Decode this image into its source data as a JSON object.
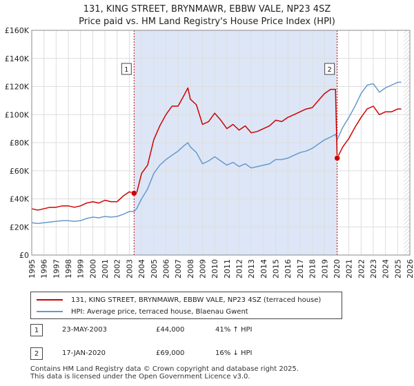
{
  "title_line1": "131, KING STREET, BRYNMAWR, EBBW VALE, NP23 4SZ",
  "title_line2": "Price paid vs. HM Land Registry's House Price Index (HPI)",
  "colors": {
    "property": "#cc0000",
    "hpi": "#6699cc",
    "shade": "#dde6f7",
    "grid": "#dddddd"
  },
  "legend": {
    "property_label": "131, KING STREET, BRYNMAWR, EBBW VALE, NP23 4SZ (terraced house)",
    "hpi_label": "HPI: Average price, terraced house, Blaenau Gwent"
  },
  "sales": [
    {
      "num": "1",
      "date": "23-MAY-2003",
      "price": "£44,000",
      "hpi": "41% ↑ HPI"
    },
    {
      "num": "2",
      "date": "17-JAN-2020",
      "price": "£69,000",
      "hpi": "16% ↓ HPI"
    }
  ],
  "footer_line1": "Contains HM Land Registry data © Crown copyright and database right 2025.",
  "footer_line2": "This data is licensed under the Open Government Licence v3.0.",
  "chart_data": {
    "type": "line",
    "xlim": [
      1995,
      2026
    ],
    "ylim": [
      0,
      160000
    ],
    "y_ticks": [
      {
        "value": 0,
        "label": "£0"
      },
      {
        "value": 20000,
        "label": "£20K"
      },
      {
        "value": 40000,
        "label": "£40K"
      },
      {
        "value": 60000,
        "label": "£60K"
      },
      {
        "value": 80000,
        "label": "£80K"
      },
      {
        "value": 100000,
        "label": "£100K"
      },
      {
        "value": 120000,
        "label": "£120K"
      },
      {
        "value": 140000,
        "label": "£140K"
      },
      {
        "value": 160000,
        "label": "£160K"
      }
    ],
    "x_ticks": [
      "1995",
      "1996",
      "1997",
      "1998",
      "1999",
      "2000",
      "2001",
      "2002",
      "2003",
      "2004",
      "2005",
      "2006",
      "2007",
      "2008",
      "2009",
      "2010",
      "2011",
      "2012",
      "2013",
      "2014",
      "2015",
      "2016",
      "2017",
      "2018",
      "2019",
      "2020",
      "2021",
      "2022",
      "2023",
      "2024",
      "2025",
      "2026"
    ],
    "shaded_range": [
      2003.39,
      2020.04
    ],
    "hatched_from": 2025.5,
    "sale_markers": [
      {
        "label": "1",
        "x": 2003.39,
        "y": 44000
      },
      {
        "label": "2",
        "x": 2020.04,
        "y": 69000
      }
    ],
    "series": [
      {
        "name": "131, KING STREET, BRYNMAWR, EBBW VALE, NP23 4SZ (terraced house)",
        "x": [
          1995,
          1995.5,
          1996,
          1996.5,
          1997,
          1997.5,
          1998,
          1998.5,
          1999,
          1999.5,
          2000,
          2000.5,
          2001,
          2001.5,
          2002,
          2002.5,
          2003,
          2003.39,
          2003.6,
          2004,
          2004.5,
          2005,
          2005.5,
          2006,
          2006.5,
          2007,
          2007.5,
          2007.8,
          2008,
          2008.5,
          2009,
          2009.5,
          2010,
          2010.5,
          2011,
          2011.5,
          2012,
          2012.5,
          2013,
          2013.5,
          2014,
          2014.5,
          2015,
          2015.5,
          2016,
          2016.5,
          2017,
          2017.5,
          2018,
          2018.5,
          2019,
          2019.5,
          2019.9,
          2020.04,
          2020.5,
          2021,
          2021.5,
          2022,
          2022.5,
          2023,
          2023.5,
          2024,
          2024.5,
          2025,
          2025.3
        ],
        "values": [
          33000,
          32000,
          33000,
          34000,
          34000,
          35000,
          35000,
          34000,
          35000,
          37000,
          38000,
          37000,
          39000,
          38000,
          38000,
          42000,
          45000,
          44000,
          44000,
          58000,
          64000,
          82000,
          92000,
          100000,
          106000,
          106000,
          114000,
          119000,
          111000,
          107000,
          93000,
          95000,
          101000,
          96000,
          90000,
          93000,
          89000,
          92000,
          87000,
          88000,
          90000,
          92000,
          96000,
          95000,
          98000,
          100000,
          102000,
          104000,
          105000,
          110000,
          115000,
          118000,
          118000,
          69000,
          77000,
          83000,
          91000,
          98000,
          104000,
          106000,
          100000,
          102000,
          102000,
          104000,
          104000
        ]
      },
      {
        "name": "HPI: Average price, terraced house, Blaenau Gwent",
        "x": [
          1995,
          1995.5,
          1996,
          1996.5,
          1997,
          1997.5,
          1998,
          1998.5,
          1999,
          1999.5,
          2000,
          2000.5,
          2001,
          2001.5,
          2002,
          2002.5,
          2003,
          2003.39,
          2003.6,
          2004,
          2004.5,
          2005,
          2005.5,
          2006,
          2006.5,
          2007,
          2007.5,
          2007.8,
          2008,
          2008.5,
          2009,
          2009.5,
          2010,
          2010.5,
          2011,
          2011.5,
          2012,
          2012.5,
          2013,
          2013.5,
          2014,
          2014.5,
          2015,
          2015.5,
          2016,
          2016.5,
          2017,
          2017.5,
          2018,
          2018.5,
          2019,
          2019.5,
          2019.9,
          2020.04,
          2020.5,
          2021,
          2021.5,
          2022,
          2022.5,
          2023,
          2023.5,
          2024,
          2024.5,
          2025,
          2025.3
        ],
        "values": [
          23000,
          22500,
          23000,
          23500,
          24000,
          24500,
          24500,
          24000,
          24500,
          26000,
          27000,
          26500,
          27500,
          27000,
          27500,
          29000,
          31000,
          31000,
          33000,
          40000,
          47000,
          58000,
          64000,
          68000,
          71000,
          74000,
          78000,
          80000,
          77000,
          73000,
          65000,
          67000,
          70000,
          67000,
          64000,
          66000,
          63000,
          65000,
          62000,
          63000,
          64000,
          65000,
          68000,
          68000,
          69000,
          71000,
          73000,
          74000,
          76000,
          79000,
          82000,
          84000,
          86000,
          82000,
          91000,
          98000,
          106000,
          115000,
          121000,
          122000,
          116000,
          119000,
          121000,
          123000,
          123000
        ]
      }
    ]
  }
}
